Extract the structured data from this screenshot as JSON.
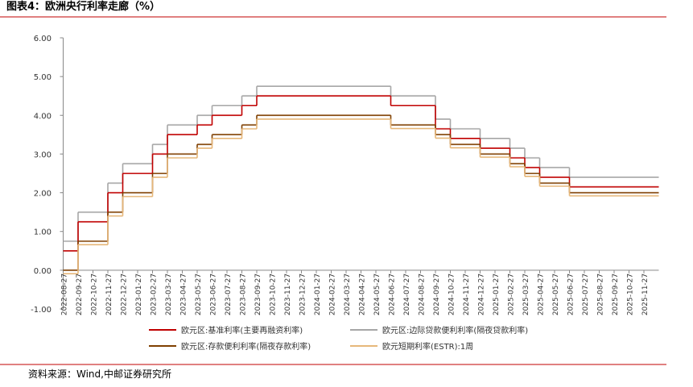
{
  "chart_data": {
    "type": "step",
    "title": "图表4：欧洲央行利率走廊（%）",
    "source": "资料来源：Wind,中邮证券研究所",
    "categories": [
      "2022-08-27",
      "2022-09-27",
      "2022-10-27",
      "2022-11-27",
      "2022-12-27",
      "2023-01-27",
      "2023-02-27",
      "2023-03-27",
      "2023-04-27",
      "2023-05-27",
      "2023-06-27",
      "2023-07-27",
      "2023-08-27",
      "2023-09-27",
      "2023-10-27",
      "2023-11-27",
      "2023-12-27",
      "2024-01-27",
      "2024-02-27",
      "2024-03-27",
      "2024-04-27",
      "2024-05-27",
      "2024-06-27",
      "2024-07-27",
      "2024-08-27",
      "2024-09-27",
      "2024-10-27",
      "2024-11-27",
      "2024-12-27",
      "2025-01-27",
      "2025-02-27",
      "2025-03-27",
      "2025-04-27",
      "2025-05-27",
      "2025-06-27",
      "2025-07-27",
      "2025-08-27",
      "2025-09-27",
      "2025-10-27",
      "2025-11-27"
    ],
    "series": [
      {
        "name": "欧元区:基准利率(主要再融资利率)",
        "color": "#c00000",
        "values": [
          0.5,
          1.25,
          1.25,
          2.0,
          2.5,
          2.5,
          3.0,
          3.5,
          3.5,
          3.75,
          4.0,
          4.0,
          4.25,
          4.5,
          4.5,
          4.5,
          4.5,
          4.5,
          4.5,
          4.5,
          4.5,
          4.5,
          4.25,
          4.25,
          4.25,
          3.65,
          3.4,
          3.4,
          3.15,
          3.15,
          2.9,
          2.65,
          2.4,
          2.4,
          2.15,
          2.15,
          2.15,
          2.15,
          2.15,
          2.15
        ]
      },
      {
        "name": "欧元区:边际贷款便利利率(隔夜贷款利率)",
        "color": "#a6a6a6",
        "values": [
          0.75,
          1.5,
          1.5,
          2.25,
          2.75,
          2.75,
          3.25,
          3.75,
          3.75,
          4.0,
          4.25,
          4.25,
          4.5,
          4.75,
          4.75,
          4.75,
          4.75,
          4.75,
          4.75,
          4.75,
          4.75,
          4.75,
          4.5,
          4.5,
          4.5,
          3.9,
          3.65,
          3.65,
          3.4,
          3.4,
          3.15,
          2.9,
          2.65,
          2.65,
          2.4,
          2.4,
          2.4,
          2.4,
          2.4,
          2.4
        ]
      },
      {
        "name": "欧元区:存款便利利率(隔夜存款利率)",
        "color": "#7f3f00",
        "values": [
          0,
          0.75,
          0.75,
          1.5,
          2.0,
          2.0,
          2.5,
          3.0,
          3.0,
          3.25,
          3.5,
          3.5,
          3.75,
          4.0,
          4.0,
          4.0,
          4.0,
          4.0,
          4.0,
          4.0,
          4.0,
          4.0,
          3.75,
          3.75,
          3.75,
          3.5,
          3.25,
          3.25,
          3.0,
          3.0,
          2.75,
          2.5,
          2.25,
          2.25,
          2.0,
          2.0,
          2.0,
          2.0,
          2.0,
          2.0
        ]
      },
      {
        "name": "欧元短期利率(ESTR):1周",
        "color": "#e6b77a",
        "values": [
          -0.09,
          0.66,
          0.66,
          1.4,
          1.9,
          1.9,
          2.4,
          2.9,
          2.9,
          3.15,
          3.4,
          3.4,
          3.65,
          3.9,
          3.9,
          3.9,
          3.9,
          3.9,
          3.9,
          3.9,
          3.9,
          3.9,
          3.66,
          3.66,
          3.66,
          3.41,
          3.16,
          3.16,
          2.92,
          2.92,
          2.67,
          2.42,
          2.17,
          2.17,
          1.92,
          1.92,
          1.92,
          1.92,
          1.92,
          1.92
        ]
      }
    ],
    "ylim": [
      -1,
      6
    ],
    "yticks": [
      {
        "value": -1,
        "label": "-1.00"
      },
      {
        "value": 0,
        "label": "0.00"
      },
      {
        "value": 1,
        "label": "1.00"
      },
      {
        "value": 2,
        "label": "2.00"
      },
      {
        "value": 3,
        "label": "3.00"
      },
      {
        "value": 4,
        "label": "4.00"
      },
      {
        "value": 5,
        "label": "5.00"
      },
      {
        "value": 6,
        "label": "6.00"
      }
    ]
  }
}
